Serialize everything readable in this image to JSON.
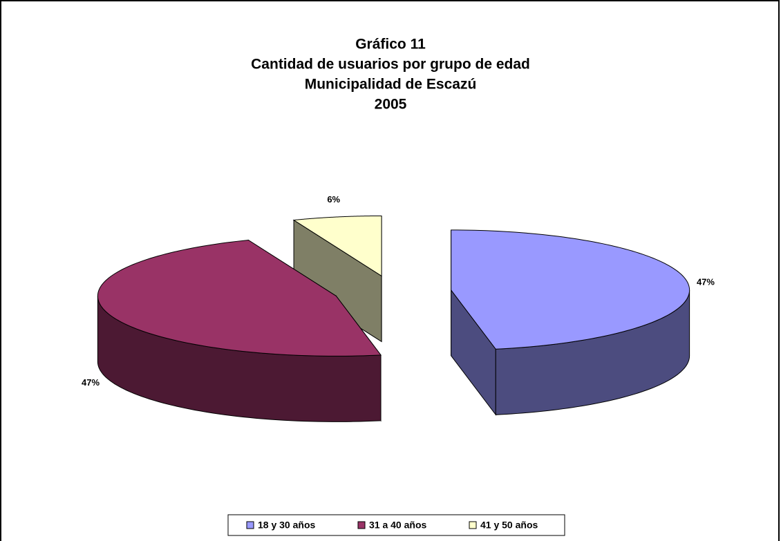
{
  "chart_data": {
    "type": "pie3d",
    "title": [
      "Gráfico 11",
      "Cantidad de usuarios por grupo de edad",
      "Municipalidad de Escazú",
      "2005"
    ],
    "categories": [
      "18 y 30 años",
      "31 a 40 años",
      "41 y 50 años"
    ],
    "values": [
      47,
      47,
      6
    ],
    "value_labels": [
      "47%",
      "47%",
      "6%"
    ],
    "colors": [
      "#9999ff",
      "#993366",
      "#ffffcc"
    ],
    "legend": "bottom"
  }
}
